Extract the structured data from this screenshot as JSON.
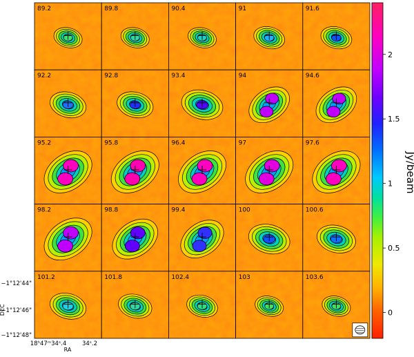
{
  "figure": {
    "panel_labels": [
      "89.2",
      "89.8",
      "90.4",
      "91",
      "91.6",
      "92.2",
      "92.8",
      "93.4",
      "94",
      "94.6",
      "95.2",
      "95.8",
      "96.4",
      "97",
      "97.6",
      "98.2",
      "98.8",
      "99.4",
      "100",
      "100.6",
      "101.2",
      "101.8",
      "102.4",
      "103",
      "103.6"
    ],
    "dec_axis": {
      "label": "DEC",
      "ticks": [
        "−1°12'44\"",
        "−1°12'46\"",
        "−1°12'48\""
      ]
    },
    "ra_axis": {
      "label": "RA",
      "ticks": [
        "18ʰ47ᵐ34ˢ.4",
        "34ˢ.2"
      ]
    },
    "colorbar": {
      "label": "Jy/beam",
      "ticks": [
        "2",
        "1.5",
        "1",
        "0.5",
        "0"
      ],
      "tick_values": [
        2,
        1.5,
        1,
        0.5,
        0
      ],
      "range": [
        -0.2,
        2.4
      ],
      "colormap": [
        "#ff2000",
        "#ff5a00",
        "#ff9c00",
        "#ffd800",
        "#c8f000",
        "#40f040",
        "#00e0b0",
        "#00b8ff",
        "#0060ff",
        "#2020ff",
        "#8000ff",
        "#c800ff",
        "#ff00c8",
        "#ff2878"
      ]
    }
  }
}
